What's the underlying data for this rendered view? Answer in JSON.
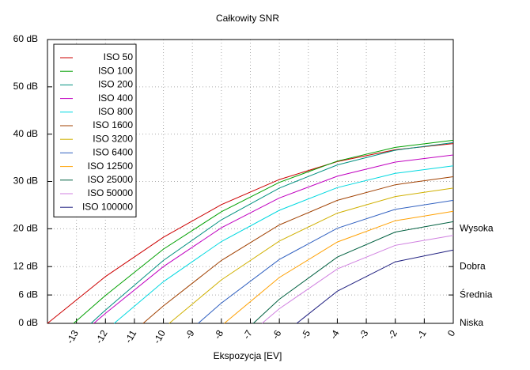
{
  "chart_data": {
    "type": "line",
    "title": "Całkowity SNR",
    "x_label": "Ekspozycja [EV]",
    "xlim": [
      -14,
      0
    ],
    "xticks": [
      -13,
      -12,
      -11,
      -10,
      -9,
      -8,
      -7,
      -6,
      -5,
      -4,
      -3,
      -2,
      -1,
      0
    ],
    "ylim": [
      0,
      60
    ],
    "yticks": [
      {
        "value": 0,
        "label": "0 dB"
      },
      {
        "value": 6,
        "label": "6 dB"
      },
      {
        "value": 12,
        "label": "12 dB"
      },
      {
        "value": 20,
        "label": "20 dB"
      },
      {
        "value": 30,
        "label": "30 dB"
      },
      {
        "value": 40,
        "label": "40 dB"
      },
      {
        "value": 50,
        "label": "50 dB"
      },
      {
        "value": 60,
        "label": "60 dB"
      }
    ],
    "y2lim": [
      0,
      60
    ],
    "y2ticks": [
      {
        "value": 0,
        "label": "Niska"
      },
      {
        "value": 6,
        "label": "Średnia"
      },
      {
        "value": 12,
        "label": "Dobra"
      },
      {
        "value": 20,
        "label": "Wysoka"
      }
    ],
    "grid": true,
    "legend": "top-left",
    "series": [
      {
        "name": "ISO 50",
        "color": "#cc0000",
        "x": [
          -14,
          -12,
          -10,
          -8,
          -6,
          -4,
          -2,
          0
        ],
        "values": [
          0,
          9.9,
          18.2,
          25.1,
          30.4,
          34.2,
          36.7,
          38
        ]
      },
      {
        "name": "ISO 100",
        "color": "#00a000",
        "x": [
          -13.1,
          -12,
          -10,
          -8,
          -6,
          -4,
          -2,
          0
        ],
        "values": [
          0,
          5.9,
          15.7,
          23.6,
          29.8,
          34.3,
          37.2,
          38.7
        ]
      },
      {
        "name": "ISO 200",
        "color": "#009080",
        "x": [
          -12.5,
          -12,
          -10,
          -8,
          -6,
          -4,
          -2,
          0
        ],
        "values": [
          0,
          2.8,
          13.3,
          21.9,
          28.6,
          33.5,
          36.6,
          38.2
        ]
      },
      {
        "name": "ISO 400",
        "color": "#c000c0",
        "x": [
          -12.4,
          -12,
          -10,
          -8,
          -6,
          -4,
          -2,
          0
        ],
        "values": [
          0,
          2.1,
          12,
          20.2,
          26.5,
          31.1,
          34.1,
          35.6
        ]
      },
      {
        "name": "ISO 800",
        "color": "#00d8e0",
        "x": [
          -11.7,
          -10,
          -8,
          -6,
          -4,
          -2,
          0
        ],
        "values": [
          0,
          8.8,
          17.3,
          23.9,
          28.7,
          31.7,
          33.3
        ]
      },
      {
        "name": "ISO 1600",
        "color": "#a04000",
        "x": [
          -10.7,
          -10,
          -8,
          -6,
          -4,
          -2,
          0
        ],
        "values": [
          0,
          3.7,
          13.3,
          20.8,
          26,
          29.3,
          31
        ]
      },
      {
        "name": "ISO 3200",
        "color": "#d0b000",
        "x": [
          -9.8,
          -8,
          -6,
          -4,
          -2,
          0
        ],
        "values": [
          0,
          9.2,
          17.4,
          23.3,
          26.8,
          28.6
        ]
      },
      {
        "name": "ISO 6400",
        "color": "#3060c0",
        "x": [
          -8.8,
          -8,
          -6,
          -4,
          -2,
          0
        ],
        "values": [
          0,
          4.3,
          13.5,
          20.1,
          24.1,
          26
        ]
      },
      {
        "name": "ISO 12500",
        "color": "#ffa000",
        "x": [
          -7.9,
          -6,
          -4,
          -2,
          0
        ],
        "values": [
          0,
          9.7,
          17.2,
          21.7,
          23.7
        ]
      },
      {
        "name": "ISO 25000",
        "color": "#006040",
        "x": [
          -6.9,
          -6,
          -4,
          -2,
          0
        ],
        "values": [
          0,
          5.1,
          14,
          19.3,
          21.5
        ]
      },
      {
        "name": "ISO 50000",
        "color": "#d080e0",
        "x": [
          -6.6,
          -6,
          -4,
          -2,
          0
        ],
        "values": [
          0,
          3.1,
          11.5,
          16.5,
          18.6
        ]
      },
      {
        "name": "ISO 100000",
        "color": "#202080",
        "x": [
          -5.4,
          -4,
          -2,
          0
        ],
        "values": [
          0,
          6.8,
          13,
          15.5
        ]
      }
    ]
  }
}
